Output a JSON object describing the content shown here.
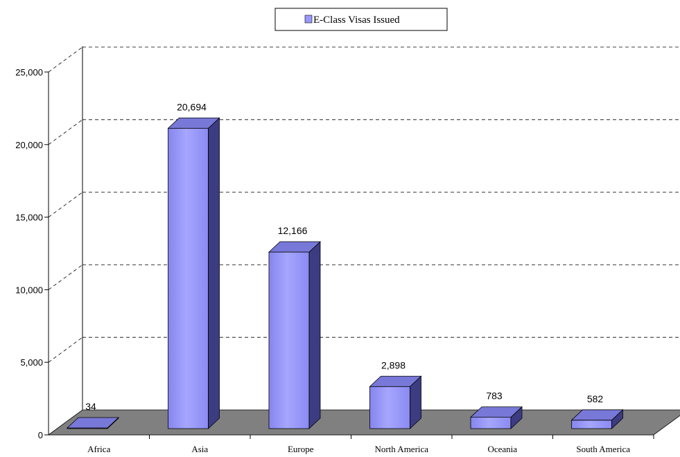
{
  "chart_data": {
    "type": "bar",
    "categories": [
      "Africa",
      "Asia",
      "Europe",
      "North America",
      "Oceania",
      "South America"
    ],
    "series": [
      {
        "name": "E-Class Visas Issued",
        "values": [
          34,
          20694,
          12166,
          2898,
          783,
          582
        ]
      }
    ],
    "data_labels": [
      "34",
      "20,694",
      "12,166",
      "2,898",
      "783",
      "582"
    ],
    "y_ticks": [
      0,
      5000,
      10000,
      15000,
      20000,
      25000
    ],
    "y_tick_labels": [
      "0",
      "5,000",
      "10,000",
      "15,000",
      "20,000",
      "25,000"
    ],
    "ylim": [
      0,
      25000
    ],
    "grid": "dashed horizontal",
    "legend_position": "top-center",
    "colors": {
      "bar_front": "#9999ff",
      "bar_top": "#7878d8",
      "bar_side": "#3c3c82",
      "floor": "#808080",
      "gridline": "#000000"
    }
  }
}
